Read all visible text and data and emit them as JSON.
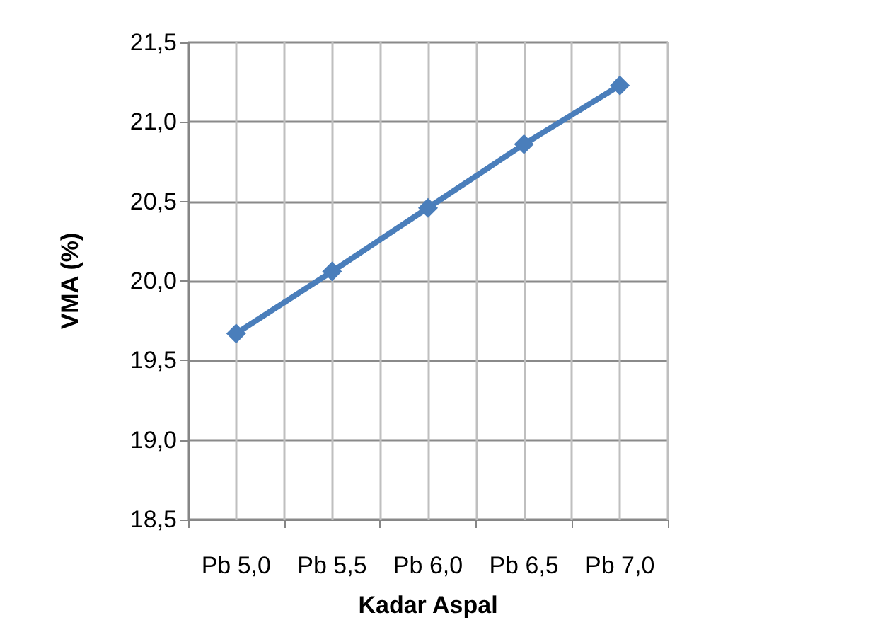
{
  "chart_data": {
    "type": "line",
    "xlabel": "Kadar Aspal",
    "ylabel": "VMA (%)",
    "categories": [
      "Pb 5,0",
      "Pb 5,5",
      "Pb 6,0",
      "Pb 6,5",
      "Pb 7,0"
    ],
    "series": [
      {
        "color": "#4a7ebb",
        "values": [
          19.67,
          20.06,
          20.46,
          20.86,
          21.23
        ]
      }
    ],
    "ylim": [
      18.5,
      21.5
    ],
    "yticks": [
      {
        "value": 18.5,
        "label": "18,5"
      },
      {
        "value": 19,
        "label": "19,0"
      },
      {
        "value": 19.5,
        "label": "19,5"
      },
      {
        "value": 20,
        "label": "20,0"
      },
      {
        "value": 20.5,
        "label": "20,5"
      },
      {
        "value": 21,
        "label": "21,0"
      },
      {
        "value": 21.5,
        "label": "21,5"
      }
    ],
    "grid": true,
    "marker": "diamond",
    "line_style": "solid"
  }
}
